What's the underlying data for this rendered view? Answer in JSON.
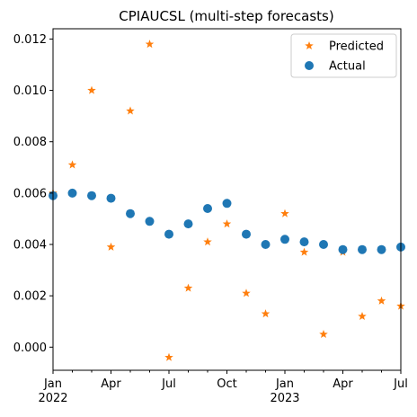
{
  "chart_data": {
    "type": "scatter",
    "title": "CPIAUCSL (multi-step forecasts)",
    "xlabel": "",
    "ylabel": "",
    "x": [
      "2022-01",
      "2022-02",
      "2022-03",
      "2022-04",
      "2022-05",
      "2022-06",
      "2022-07",
      "2022-08",
      "2022-09",
      "2022-10",
      "2022-11",
      "2022-12",
      "2023-01",
      "2023-02",
      "2023-03",
      "2023-04",
      "2023-05",
      "2023-06",
      "2023-07"
    ],
    "series": [
      {
        "name": "Predicted",
        "marker": "star",
        "color": "#ff7f0e",
        "values": [
          0.006,
          0.0071,
          0.01,
          0.0039,
          0.0092,
          0.0118,
          -0.0004,
          0.0023,
          0.0041,
          0.0048,
          0.0021,
          0.0013,
          0.0052,
          0.0037,
          0.0005,
          0.0037,
          0.0012,
          0.0018,
          0.0016
        ]
      },
      {
        "name": "Actual",
        "marker": "circle",
        "color": "#1f77b4",
        "values": [
          0.0059,
          0.006,
          0.0059,
          0.0058,
          0.0052,
          0.0049,
          0.0044,
          0.0048,
          0.0054,
          0.0056,
          0.0044,
          0.004,
          0.0042,
          0.0041,
          0.004,
          0.0038,
          0.0038,
          0.0038,
          0.0039
        ]
      }
    ],
    "ylim": [
      -0.0009,
      0.0124
    ],
    "yticks": [
      0.0,
      0.002,
      0.004,
      0.006,
      0.008,
      0.01,
      0.012
    ],
    "ytick_labels": [
      "0.000",
      "0.002",
      "0.004",
      "0.006",
      "0.008",
      "0.010",
      "0.012"
    ],
    "xticks_major": [
      {
        "index": 0,
        "label": "Jan",
        "sublabel": "2022"
      },
      {
        "index": 3,
        "label": "Apr",
        "sublabel": ""
      },
      {
        "index": 6,
        "label": "Jul",
        "sublabel": ""
      },
      {
        "index": 9,
        "label": "Oct",
        "sublabel": ""
      },
      {
        "index": 12,
        "label": "Jan",
        "sublabel": "2023"
      },
      {
        "index": 15,
        "label": "Apr",
        "sublabel": ""
      },
      {
        "index": 18,
        "label": "Jul",
        "sublabel": ""
      }
    ],
    "grid": false,
    "legend": "top-right"
  }
}
